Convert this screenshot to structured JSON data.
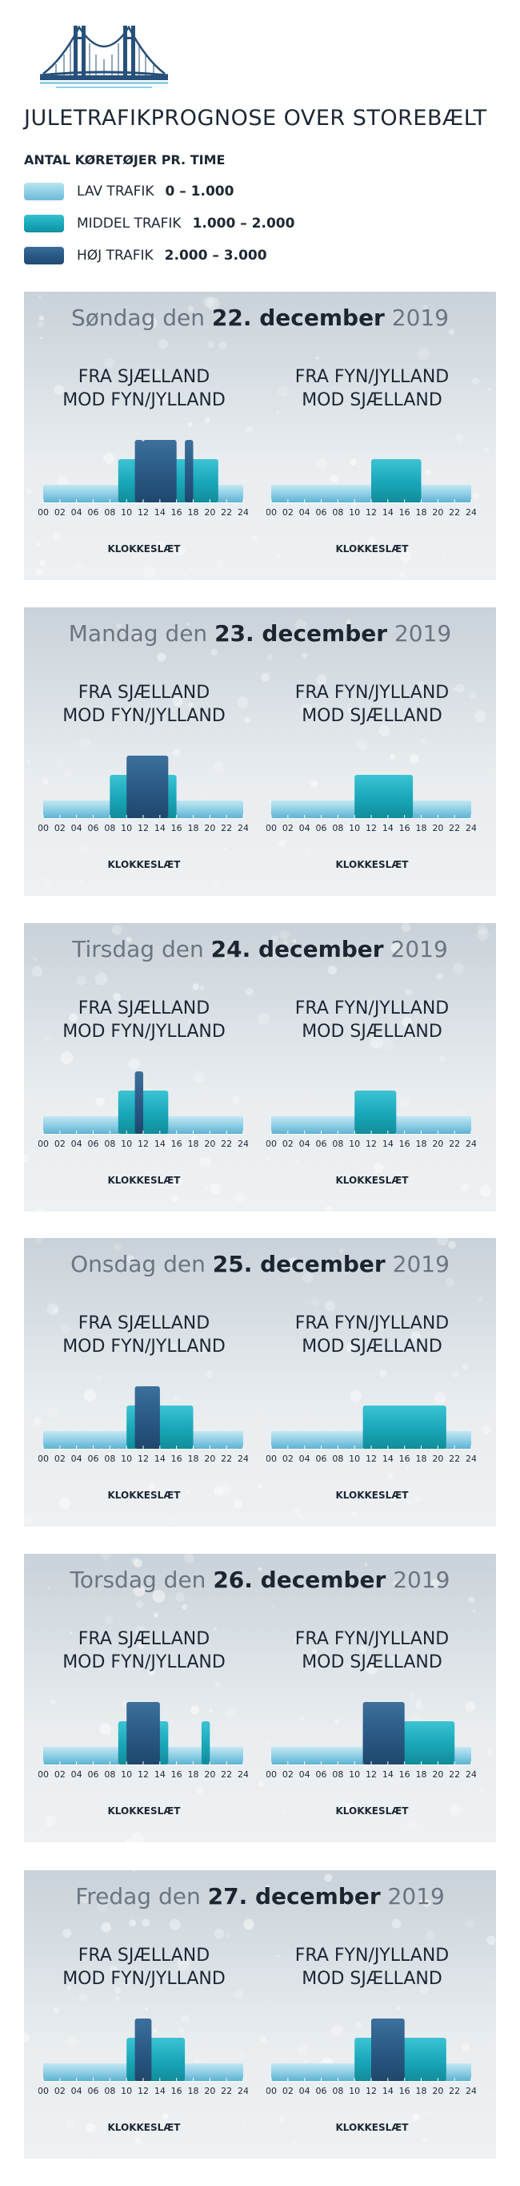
{
  "title": "JULETRAFIKPROGNOSE OVER STOREBÆLT",
  "legend": {
    "heading": "ANTAL KØRETØJER PR. TIME",
    "items": [
      {
        "label": "LAV TRAFIK",
        "range": "0 – 1.000",
        "color": "#8fcfe6"
      },
      {
        "label": "MIDDEL TRAFIK",
        "range": "1.000 – 2.000",
        "color": "#1aa9bb"
      },
      {
        "label": "HØJ TRAFIK",
        "range": "2.000 – 3.000",
        "color": "#2a5a86"
      }
    ]
  },
  "colors": {
    "low": "#8fcfe6",
    "mid": "#1aa9bb",
    "high": "#2a5a86"
  },
  "chart_data": [
    {
      "type": "bar",
      "weekday": "Søndag den",
      "date": "22. december",
      "year": "2019",
      "xlabel": "KLOKKESLÆT",
      "ticks": [
        "00",
        "02",
        "04",
        "06",
        "08",
        "10",
        "12",
        "14",
        "16",
        "18",
        "20",
        "22",
        "24"
      ],
      "charts": [
        {
          "direction_lines": [
            "FRA SJÆLLAND",
            "MOD FYN/JYLLAND"
          ],
          "series": [
            {
              "level": "LAV TRAFIK",
              "ranges": [
                [
                  0,
                  24
                ]
              ]
            },
            {
              "level": "MIDDEL TRAFIK",
              "ranges": [
                [
                  9,
                  21
                ]
              ]
            },
            {
              "level": "HØJ TRAFIK",
              "ranges": [
                [
                  11,
                  12
                ],
                [
                  12,
                  16
                ],
                [
                  17,
                  18
                ]
              ]
            }
          ]
        },
        {
          "direction_lines": [
            "FRA FYN/JYLLAND",
            "MOD SJÆLLAND"
          ],
          "series": [
            {
              "level": "LAV TRAFIK",
              "ranges": [
                [
                  0,
                  24
                ]
              ]
            },
            {
              "level": "MIDDEL TRAFIK",
              "ranges": [
                [
                  12,
                  18
                ]
              ]
            }
          ]
        }
      ]
    },
    {
      "type": "bar",
      "weekday": "Mandag den",
      "date": "23. december",
      "year": "2019",
      "xlabel": "KLOKKESLÆT",
      "ticks": [
        "00",
        "02",
        "04",
        "06",
        "08",
        "10",
        "12",
        "14",
        "16",
        "18",
        "20",
        "22",
        "24"
      ],
      "charts": [
        {
          "direction_lines": [
            "FRA SJÆLLAND",
            "MOD FYN/JYLLAND"
          ],
          "series": [
            {
              "level": "LAV TRAFIK",
              "ranges": [
                [
                  0,
                  24
                ]
              ]
            },
            {
              "level": "MIDDEL TRAFIK",
              "ranges": [
                [
                  8,
                  16
                ]
              ]
            },
            {
              "level": "HØJ TRAFIK",
              "ranges": [
                [
                  10,
                  15
                ]
              ]
            }
          ]
        },
        {
          "direction_lines": [
            "FRA FYN/JYLLAND",
            "MOD SJÆLLAND"
          ],
          "series": [
            {
              "level": "LAV TRAFIK",
              "ranges": [
                [
                  0,
                  24
                ]
              ]
            },
            {
              "level": "MIDDEL TRAFIK",
              "ranges": [
                [
                  10,
                  17
                ]
              ]
            }
          ]
        }
      ]
    },
    {
      "type": "bar",
      "weekday": "Tirsdag den",
      "date": "24. december",
      "year": "2019",
      "xlabel": "KLOKKESLÆT",
      "ticks": [
        "00",
        "02",
        "04",
        "06",
        "08",
        "10",
        "12",
        "14",
        "16",
        "18",
        "20",
        "22",
        "24"
      ],
      "charts": [
        {
          "direction_lines": [
            "FRA SJÆLLAND",
            "MOD FYN/JYLLAND"
          ],
          "series": [
            {
              "level": "LAV TRAFIK",
              "ranges": [
                [
                  0,
                  24
                ]
              ]
            },
            {
              "level": "MIDDEL TRAFIK",
              "ranges": [
                [
                  9,
                  15
                ]
              ]
            },
            {
              "level": "HØJ TRAFIK",
              "ranges": [
                [
                  11,
                  12
                ]
              ]
            }
          ]
        },
        {
          "direction_lines": [
            "FRA FYN/JYLLAND",
            "MOD SJÆLLAND"
          ],
          "series": [
            {
              "level": "LAV TRAFIK",
              "ranges": [
                [
                  0,
                  24
                ]
              ]
            },
            {
              "level": "MIDDEL TRAFIK",
              "ranges": [
                [
                  10,
                  15
                ]
              ]
            }
          ]
        }
      ]
    },
    {
      "type": "bar",
      "weekday": "Onsdag den",
      "date": "25. december",
      "year": "2019",
      "xlabel": "KLOKKESLÆT",
      "ticks": [
        "00",
        "02",
        "04",
        "06",
        "08",
        "10",
        "12",
        "14",
        "16",
        "18",
        "20",
        "22",
        "24"
      ],
      "charts": [
        {
          "direction_lines": [
            "FRA SJÆLLAND",
            "MOD FYN/JYLLAND"
          ],
          "series": [
            {
              "level": "LAV TRAFIK",
              "ranges": [
                [
                  0,
                  24
                ]
              ]
            },
            {
              "level": "MIDDEL TRAFIK",
              "ranges": [
                [
                  10,
                  18
                ]
              ]
            },
            {
              "level": "HØJ TRAFIK",
              "ranges": [
                [
                  11,
                  14
                ]
              ]
            }
          ]
        },
        {
          "direction_lines": [
            "FRA FYN/JYLLAND",
            "MOD SJÆLLAND"
          ],
          "series": [
            {
              "level": "LAV TRAFIK",
              "ranges": [
                [
                  0,
                  24
                ]
              ]
            },
            {
              "level": "MIDDEL TRAFIK",
              "ranges": [
                [
                  11,
                  21
                ]
              ]
            }
          ]
        }
      ]
    },
    {
      "type": "bar",
      "weekday": "Torsdag den",
      "date": "26. december",
      "year": "2019",
      "xlabel": "KLOKKESLÆT",
      "ticks": [
        "00",
        "02",
        "04",
        "06",
        "08",
        "10",
        "12",
        "14",
        "16",
        "18",
        "20",
        "22",
        "24"
      ],
      "charts": [
        {
          "direction_lines": [
            "FRA SJÆLLAND",
            "MOD FYN/JYLLAND"
          ],
          "series": [
            {
              "level": "LAV TRAFIK",
              "ranges": [
                [
                  0,
                  24
                ]
              ]
            },
            {
              "level": "MIDDEL TRAFIK",
              "ranges": [
                [
                  9,
                  15
                ],
                [
                  19,
                  20
                ]
              ]
            },
            {
              "level": "HØJ TRAFIK",
              "ranges": [
                [
                  10,
                  14
                ]
              ]
            }
          ]
        },
        {
          "direction_lines": [
            "FRA FYN/JYLLAND",
            "MOD SJÆLLAND"
          ],
          "series": [
            {
              "level": "LAV TRAFIK",
              "ranges": [
                [
                  0,
                  24
                ]
              ]
            },
            {
              "level": "MIDDEL TRAFIK",
              "ranges": [
                [
                  11,
                  22
                ]
              ]
            },
            {
              "level": "HØJ TRAFIK",
              "ranges": [
                [
                  11,
                  16
                ]
              ]
            }
          ]
        }
      ]
    },
    {
      "type": "bar",
      "weekday": "Fredag den",
      "date": "27. december",
      "year": "2019",
      "xlabel": "KLOKKESLÆT",
      "ticks": [
        "00",
        "02",
        "04",
        "06",
        "08",
        "10",
        "12",
        "14",
        "16",
        "18",
        "20",
        "22",
        "24"
      ],
      "charts": [
        {
          "direction_lines": [
            "FRA SJÆLLAND",
            "MOD FYN/JYLLAND"
          ],
          "series": [
            {
              "level": "LAV TRAFIK",
              "ranges": [
                [
                  0,
                  24
                ]
              ]
            },
            {
              "level": "MIDDEL TRAFIK",
              "ranges": [
                [
                  10,
                  17
                ]
              ]
            },
            {
              "level": "HØJ TRAFIK",
              "ranges": [
                [
                  11,
                  13
                ]
              ]
            }
          ]
        },
        {
          "direction_lines": [
            "FRA FYN/JYLLAND",
            "MOD SJÆLLAND"
          ],
          "series": [
            {
              "level": "LAV TRAFIK",
              "ranges": [
                [
                  0,
                  24
                ]
              ]
            },
            {
              "level": "MIDDEL TRAFIK",
              "ranges": [
                [
                  10,
                  21
                ]
              ]
            },
            {
              "level": "HØJ TRAFIK",
              "ranges": [
                [
                  12,
                  16
                ]
              ]
            }
          ]
        }
      ]
    }
  ]
}
